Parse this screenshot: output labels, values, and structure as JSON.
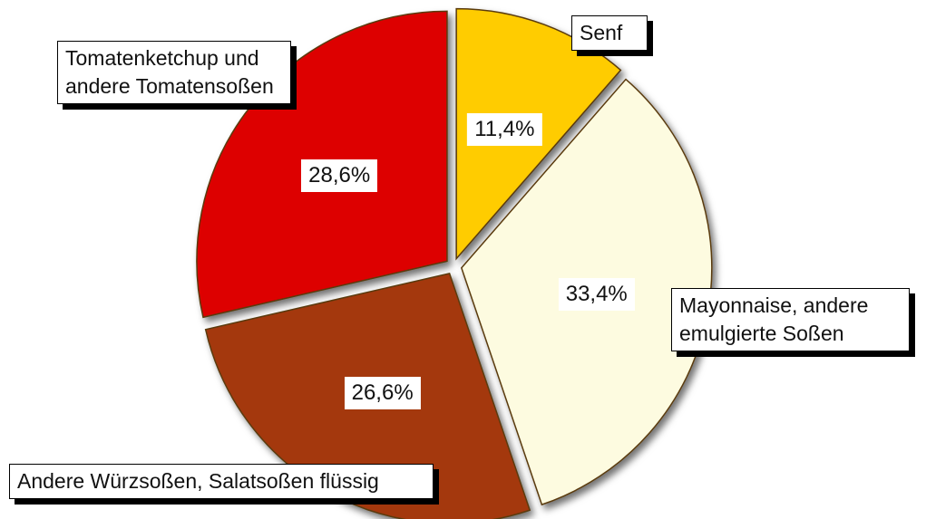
{
  "chart_data": {
    "type": "pie",
    "categories": [
      "Senf",
      "Mayonnaise, andere emulgierte Soßen",
      "Andere Würzsoßen, Salatsoßen flüssig",
      "Tomatenketchup  und andere Tomatensoßen"
    ],
    "values": [
      11.4,
      33.4,
      26.6,
      28.6
    ],
    "value_labels": [
      "11,4%",
      "33,4%",
      "26,6%",
      "28,6%"
    ],
    "colors": [
      "#ffcc00",
      "#fdfbe0",
      "#a4380a",
      "#dd0000"
    ]
  }
}
